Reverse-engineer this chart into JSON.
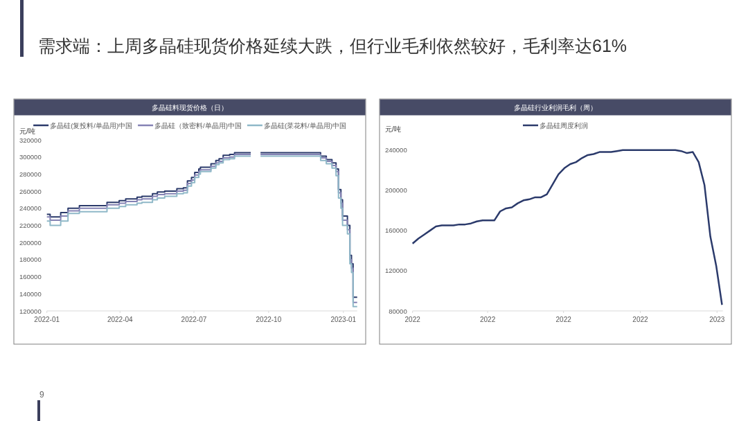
{
  "chart_data": [
    {
      "type": "step",
      "title": "多晶硅料现货价格（日）",
      "ylabel": "元/吨",
      "annotations": [
        "需求端：上周多晶硅现货价格延续大跌，但行业毛利依然较好，毛利率达61%",
        "9"
      ],
      "x": [
        "2022-01-01",
        "2022-01-05",
        "2022-01-18",
        "2022-01-27",
        "2022-02-10",
        "2022-03-16",
        "2022-03-31",
        "2022-04-08",
        "2022-04-22",
        "2022-04-28",
        "2022-05-11",
        "2022-05-17",
        "2022-05-26",
        "2022-06-10",
        "2022-06-18",
        "2022-06-23",
        "2022-06-28",
        "2022-07-02",
        "2022-07-07",
        "2022-07-09",
        "2022-07-18",
        "2022-07-22",
        "2022-07-28",
        "2022-08-01",
        "2022-08-06",
        "2022-08-14",
        "2022-08-20",
        "2022-09-09",
        "2022-09-21",
        "2022-12-03",
        "2022-12-04",
        "2022-12-11",
        "2022-12-18",
        "2022-12-23",
        "2022-12-26",
        "2022-12-29",
        "2022-12-31",
        "2023-01-04",
        "2023-01-06",
        "2023-01-09",
        "2023-01-11",
        "2023-01-13",
        "2023-01-18"
      ],
      "series": [
        {
          "name": "多晶硅(复投料/单晶用)中国",
          "color": "#2b3a6b",
          "values": [
            233000,
            230000,
            235000,
            240000,
            243000,
            247000,
            249000,
            251000,
            253000,
            254000,
            257000,
            259000,
            260000,
            263000,
            264000,
            272000,
            276000,
            282000,
            286000,
            288000,
            288000,
            292000,
            296000,
            298000,
            302000,
            303000,
            305000,
            null,
            305000,
            305000,
            301000,
            297000,
            293000,
            286000,
            262000,
            250000,
            231000,
            231000,
            220000,
            185000,
            175000,
            136000,
            136000
          ]
        },
        {
          "name": "多晶硅（致密料/单晶用)中国",
          "color": "#8482b4",
          "values": [
            230000,
            226000,
            231000,
            237000,
            240000,
            244000,
            246000,
            248000,
            250000,
            251000,
            254000,
            256000,
            257000,
            260000,
            261000,
            269000,
            273000,
            279000,
            283000,
            285000,
            285000,
            289000,
            293000,
            295000,
            299000,
            300000,
            303000,
            null,
            303000,
            303000,
            299000,
            295000,
            290000,
            283000,
            258000,
            246000,
            226000,
            226000,
            215000,
            180000,
            170000,
            130000,
            130000
          ]
        },
        {
          "name": "多晶硅(菜花料/单晶用)中国",
          "color": "#8fb8c8",
          "values": [
            225000,
            220000,
            225000,
            234000,
            236000,
            240000,
            242000,
            244000,
            246000,
            247000,
            250000,
            252000,
            254000,
            257000,
            258000,
            266000,
            270000,
            276000,
            280000,
            283000,
            283000,
            287000,
            291000,
            293000,
            297000,
            298000,
            301000,
            null,
            301000,
            301000,
            296000,
            292000,
            287000,
            278000,
            252000,
            240000,
            220000,
            220000,
            210000,
            175000,
            165000,
            125000,
            125000
          ]
        }
      ],
      "xlim": [
        "2022-01-01",
        "2023-01-18"
      ],
      "xticks": [
        {
          "value": "2022-01-01",
          "label": "2022-01"
        },
        {
          "value": "2022-04-01",
          "label": "2022-04"
        },
        {
          "value": "2022-07-01",
          "label": "2022-07"
        },
        {
          "value": "2022-10-01",
          "label": "2022-10"
        },
        {
          "value": "2023-01-01",
          "label": "2023-01"
        }
      ],
      "ylim": [
        120000,
        320000
      ],
      "yticks": [
        120000,
        140000,
        160000,
        180000,
        200000,
        220000,
        240000,
        260000,
        280000,
        300000,
        320000
      ],
      "legend": "top"
    },
    {
      "type": "line",
      "title": "多晶硅行业利润毛利（周）",
      "ylabel": "元/吨",
      "x": [
        "2022-01-01",
        "2022-01-08",
        "2022-01-15",
        "2022-01-22",
        "2022-01-29",
        "2022-02-05",
        "2022-02-12",
        "2022-02-19",
        "2022-02-26",
        "2022-03-05",
        "2022-03-12",
        "2022-03-19",
        "2022-03-26",
        "2022-04-02",
        "2022-04-09",
        "2022-04-16",
        "2022-04-23",
        "2022-04-30",
        "2022-05-07",
        "2022-05-14",
        "2022-05-21",
        "2022-05-28",
        "2022-06-04",
        "2022-06-11",
        "2022-06-18",
        "2022-06-25",
        "2022-07-02",
        "2022-07-09",
        "2022-07-16",
        "2022-07-23",
        "2022-07-30",
        "2022-08-06",
        "2022-08-13",
        "2022-08-20",
        "2022-08-27",
        "2022-09-03",
        "2022-09-10",
        "2022-09-24",
        "2022-10-08",
        "2022-10-22",
        "2022-10-29",
        "2022-11-12",
        "2022-11-19",
        "2022-11-26",
        "2022-12-03",
        "2022-12-10",
        "2022-12-17",
        "2022-12-24",
        "2022-12-31",
        "2023-01-07"
      ],
      "series": [
        {
          "name": "多晶硅周度利润",
          "color": "#2b3a6b",
          "values": [
            147000,
            152000,
            156000,
            160000,
            164000,
            165000,
            165000,
            165000,
            166000,
            166000,
            167000,
            169000,
            170000,
            170000,
            170000,
            179000,
            182000,
            183000,
            187000,
            190000,
            191000,
            193000,
            193000,
            196000,
            206000,
            216000,
            222000,
            226000,
            228000,
            232000,
            235000,
            236000,
            238000,
            238000,
            238000,
            239000,
            240000,
            240000,
            240000,
            240000,
            240000,
            240000,
            239000,
            237000,
            238000,
            228000,
            205000,
            154000,
            125000,
            86000
          ]
        }
      ],
      "xlim": [
        "2022-01-01",
        "2023-01-08"
      ],
      "xticks": [
        {
          "value": "2022-01-01",
          "label": "2022"
        },
        {
          "value": "2022-04-01",
          "label": "2022"
        },
        {
          "value": "2022-07-01",
          "label": "2022"
        },
        {
          "value": "2022-10-01",
          "label": "2022"
        },
        {
          "value": "2023-01-01",
          "label": "2023"
        }
      ],
      "ylim": [
        80000,
        240000
      ],
      "yticks": [
        80000,
        120000,
        160000,
        200000,
        240000
      ],
      "legend": "top"
    }
  ]
}
